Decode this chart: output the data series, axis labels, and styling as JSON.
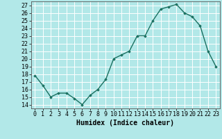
{
  "x": [
    0,
    1,
    2,
    3,
    4,
    5,
    6,
    7,
    8,
    9,
    10,
    11,
    12,
    13,
    14,
    15,
    16,
    17,
    18,
    19,
    20,
    21,
    22,
    23
  ],
  "y": [
    17.8,
    16.5,
    15.0,
    15.5,
    15.5,
    14.8,
    14.0,
    15.2,
    16.0,
    17.3,
    20.0,
    20.5,
    21.0,
    23.0,
    23.0,
    25.0,
    26.5,
    26.8,
    27.1,
    26.0,
    25.5,
    24.3,
    21.0,
    19.0
  ],
  "line_color": "#1a7060",
  "marker": "D",
  "marker_size": 1.8,
  "bg_color": "#b2e8e8",
  "grid_color": "#ffffff",
  "xlabel": "Humidex (Indice chaleur)",
  "xlim": [
    -0.5,
    23.5
  ],
  "ylim": [
    13.5,
    27.5
  ],
  "yticks": [
    14,
    15,
    16,
    17,
    18,
    19,
    20,
    21,
    22,
    23,
    24,
    25,
    26,
    27
  ],
  "xtick_labels": [
    "0",
    "1",
    "2",
    "3",
    "4",
    "5",
    "6",
    "7",
    "8",
    "9",
    "10",
    "11",
    "12",
    "13",
    "14",
    "15",
    "16",
    "17",
    "18",
    "19",
    "20",
    "21",
    "22",
    "23"
  ],
  "xlabel_fontsize": 7,
  "tick_fontsize": 6,
  "linewidth": 1.0
}
